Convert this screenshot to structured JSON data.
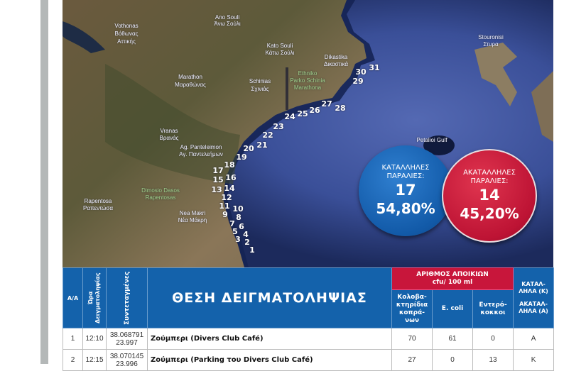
{
  "map": {
    "places": [
      "Ano Souli",
      "Άνω Σούλι",
      "Vothonas",
      "Βόθωνας",
      "Αττικής",
      "Kato Souli",
      "Κάτω Σούλι",
      "Marathon",
      "Μαραθώνας",
      "Schinias",
      "Σχινιάς",
      "Ethniko",
      "Parko Schinia",
      "Marathona",
      "Dikastika",
      "Δικαστικά",
      "Stouronisi",
      "Στυρα",
      "Vranas",
      "Βρανάς",
      "Ag. Panteleimon",
      "Αγ. Παντελεήμων",
      "Dimosio Dasos",
      "Rapentosas",
      "Rapentosa",
      "Ραπεντώσα",
      "Nea Makri",
      "Νέα Μάκρη",
      "Petalioi Gulf"
    ],
    "markers": [
      "1",
      "2",
      "3",
      "4",
      "5",
      "6",
      "7",
      "8",
      "9",
      "10",
      "11",
      "12",
      "13",
      "14",
      "15",
      "16",
      "17",
      "18",
      "19",
      "20",
      "21",
      "22",
      "23",
      "24",
      "25",
      "26",
      "27",
      "28",
      "29",
      "30",
      "31"
    ]
  },
  "summary": {
    "suitable": {
      "label": "ΚΑΤΑΛΛΗΛΕΣ ΠΑΡΑΛΙΕΣ:",
      "count": "17",
      "percent": "54,80%",
      "color": "#125aa8"
    },
    "unsuitable": {
      "label": "ΑΚΑΤΑΛΛΗΛΕΣ ΠΑΡΑΛΙΕΣ:",
      "count": "14",
      "percent": "45,20%",
      "color": "#bd1334"
    }
  },
  "table": {
    "headers": {
      "aa": "Α/Α",
      "time": "Ώρα Δειγματοληψίας",
      "coords": "Συντεταγμένες",
      "location": "ΘΕΣΗ ΔΕΙΓΜΑΤΟΛΗΨΙΑΣ",
      "colonies": "ΑΡΙΘΜΟΣ ΑΠΟΙΚΙΩΝ",
      "colonies_unit": "cfu/ 100 ml",
      "coliforms": "Κολοβα-κτηρίδια κοπρά-νων",
      "ecoli": "E. coli",
      "enterococci": "Εντερό-κοκκοι",
      "status_k": "ΚΑΤΑΛ-ΛΗΛΑ (Κ)",
      "status_a": "ΑΚΑΤΑΛ-ΛΗΛΑ (Α)"
    },
    "rows": [
      {
        "aa": "1",
        "time": "12:10",
        "lat": "38.068791",
        "lon": "23.997",
        "location": "Ζούμπερι (Divers Club Café)",
        "coliforms": "70",
        "ecoli": "61",
        "enterococci": "0",
        "status": "Α"
      },
      {
        "aa": "2",
        "time": "12:15",
        "lat": "38.070145",
        "lon": "23.996",
        "location": "Ζούμπερι (Parking του Divers Club Café)",
        "coliforms": "27",
        "ecoli": "0",
        "enterococci": "13",
        "status": "Κ"
      }
    ]
  }
}
